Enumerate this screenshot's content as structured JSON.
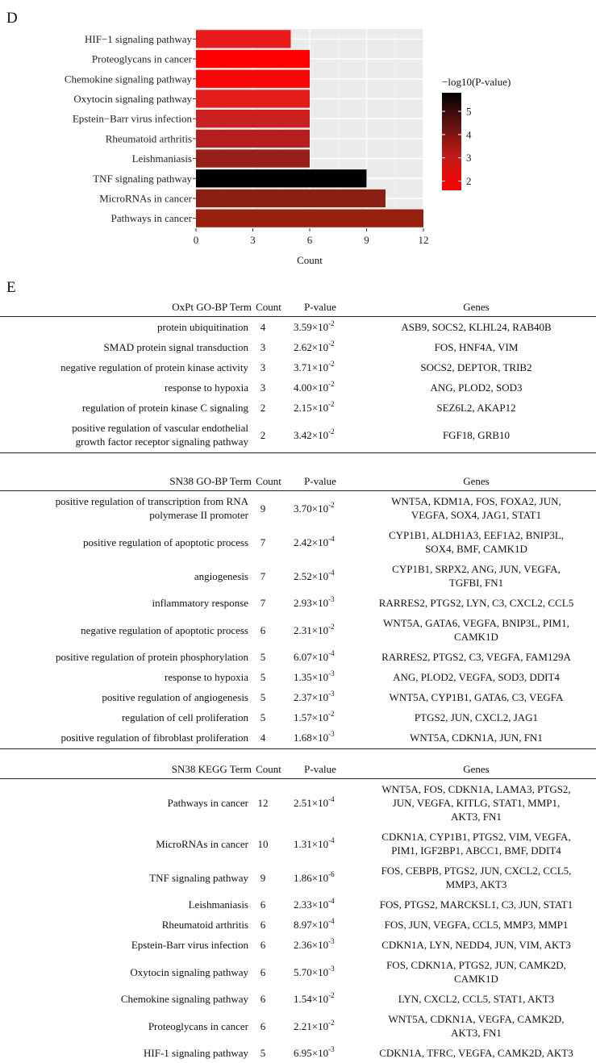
{
  "panel_d_label": "D",
  "panel_e_label": "E",
  "chart_data": {
    "type": "bar",
    "orientation": "horizontal",
    "categories": [
      "HIF−1 signaling pathway",
      "Proteoglycans in cancer",
      "Chemokine signaling pathway",
      "Oxytocin signaling pathway",
      "Epstein−Barr virus infection",
      "Rheumatoid arthritis",
      "Leishmaniasis",
      "TNF signaling pathway",
      "MicroRNAs in cancer",
      "Pathways in cancer"
    ],
    "values": [
      5,
      6,
      6,
      6,
      6,
      6,
      6,
      9,
      10,
      12
    ],
    "color_values": [
      2.16,
      1.65,
      1.81,
      2.24,
      2.63,
      3.05,
      3.63,
      5.73,
      3.88,
      3.6
    ],
    "colors": [
      "#e81a1a",
      "#ff0000",
      "#f90707",
      "#e31c1c",
      "#c92020",
      "#b51e1e",
      "#962018",
      "#000000",
      "#8a2014",
      "#98200f"
    ],
    "xlabel": "Count",
    "ylabel": "",
    "xlim": [
      0,
      12
    ],
    "xticks": [
      0,
      3,
      6,
      9,
      12
    ],
    "grid": true,
    "legend": {
      "title": "−log10(P-value)",
      "ticks": [
        2,
        3,
        4,
        5
      ],
      "range": [
        1.6,
        5.8
      ],
      "gradient": [
        "#ff0000",
        "#000000"
      ],
      "position": "right"
    }
  },
  "tables": [
    {
      "header": {
        "term": "OxPt GO-BP Term",
        "count": "Count",
        "pvalue": "P-value",
        "genes": "Genes"
      },
      "rows": [
        {
          "term": [
            "protein ubiquitination"
          ],
          "count": "4",
          "p_mant": "3.59×10",
          "p_exp": "-2",
          "genes": [
            "ASB9, SOCS2, KLHL24, RAB40B"
          ]
        },
        {
          "term": [
            "SMAD protein signal transduction"
          ],
          "count": "3",
          "p_mant": "2.62×10",
          "p_exp": "-2",
          "genes": [
            "FOS, HNF4A, VIM"
          ]
        },
        {
          "term": [
            "negative regulation of protein kinase activity"
          ],
          "count": "3",
          "p_mant": "3.71×10",
          "p_exp": "-2",
          "genes": [
            "SOCS2, DEPTOR, TRIB2"
          ]
        },
        {
          "term": [
            "response to hypoxia"
          ],
          "count": "3",
          "p_mant": "4.00×10",
          "p_exp": "-2",
          "genes": [
            "ANG, PLOD2, SOD3"
          ]
        },
        {
          "term": [
            "regulation of protein kinase C signaling"
          ],
          "count": "2",
          "p_mant": "2.15×10",
          "p_exp": "-2",
          "genes": [
            "SEZ6L2, AKAP12"
          ]
        },
        {
          "term": [
            "positive regulation of vascular endothelial",
            "growth factor receptor signaling pathway"
          ],
          "count": "2",
          "p_mant": "3.42×10",
          "p_exp": "-2",
          "genes": [
            "FGF18, GRB10"
          ]
        }
      ]
    },
    {
      "header": {
        "term": "SN38 GO-BP Term",
        "count": "Count",
        "pvalue": "P-value",
        "genes": "Genes"
      },
      "rows": [
        {
          "term": [
            "positive regulation of transcription from RNA",
            "polymerase II promoter"
          ],
          "count": "9",
          "p_mant": "3.70×10",
          "p_exp": "-2",
          "genes": [
            "WNT5A, KDM1A, FOS, FOXA2, JUN,",
            "VEGFA, SOX4,  JAG1, STAT1"
          ]
        },
        {
          "term": [
            "positive regulation of apoptotic process"
          ],
          "count": "7",
          "p_mant": "2.42×10",
          "p_exp": "-4",
          "genes": [
            "CYP1B1, ALDH1A3, EEF1A2, BNIP3L,",
            "SOX4, BMF, CAMK1D"
          ]
        },
        {
          "term": [
            "angiogenesis"
          ],
          "count": "7",
          "p_mant": "2.52×10",
          "p_exp": "-4",
          "genes": [
            "CYP1B1, SRPX2, ANG, JUN, VEGFA,",
            "TGFBI, FN1"
          ]
        },
        {
          "term": [
            "inflammatory response"
          ],
          "count": "7",
          "p_mant": "2.93×10",
          "p_exp": "-3",
          "genes": [
            "RARRES2, PTGS2, LYN, C3, CXCL2, CCL5"
          ]
        },
        {
          "term": [
            "negative regulation of apoptotic process"
          ],
          "count": "6",
          "p_mant": "2.31×10",
          "p_exp": "-2",
          "genes": [
            "WNT5A, GATA6, VEGFA, BNIP3L, PIM1,",
            "CAMK1D"
          ]
        },
        {
          "term": [
            "positive regulation of protein phosphorylation"
          ],
          "count": "5",
          "p_mant": "6.07×10",
          "p_exp": "-4",
          "genes": [
            "RARRES2, PTGS2, C3, VEGFA, FAM129A"
          ]
        },
        {
          "term": [
            "response to hypoxia"
          ],
          "count": "5",
          "p_mant": "1.35×10",
          "p_exp": "-3",
          "genes": [
            "ANG, PLOD2, VEGFA, SOD3, DDIT4"
          ]
        },
        {
          "term": [
            "positive regulation of angiogenesis"
          ],
          "count": "5",
          "p_mant": "2.37×10",
          "p_exp": "-3",
          "genes": [
            "WNT5A, CYP1B1, GATA6, C3, VEGFA"
          ]
        },
        {
          "term": [
            "regulation of cell proliferation"
          ],
          "count": "5",
          "p_mant": "1.57×10",
          "p_exp": "-2",
          "genes": [
            "PTGS2, JUN, CXCL2, JAG1"
          ]
        },
        {
          "term": [
            "positive regulation of fibroblast proliferation"
          ],
          "count": "4",
          "p_mant": "1.68×10",
          "p_exp": "-3",
          "genes": [
            "WNT5A, CDKN1A, JUN, FN1"
          ]
        }
      ]
    },
    {
      "header": {
        "term": "SN38 KEGG Term",
        "count": "Count",
        "pvalue": "P-value",
        "genes": "Genes"
      },
      "rows": [
        {
          "term": [
            "Pathways in cancer"
          ],
          "count": "12",
          "p_mant": "2.51×10",
          "p_exp": "-4",
          "genes": [
            "WNT5A, FOS, CDKN1A, LAMA3, PTGS2,",
            "JUN, VEGFA, KITLG, STAT1, MMP1,",
            "AKT3, FN1"
          ]
        },
        {
          "term": [
            "MicroRNAs in cancer"
          ],
          "count": "10",
          "p_mant": "1.31×10",
          "p_exp": "-4",
          "genes": [
            "CDKN1A, CYP1B1, PTGS2, VIM, VEGFA,",
            "PIM1, IGF2BP1, ABCC1, BMF, DDIT4"
          ]
        },
        {
          "term": [
            "TNF signaling pathway"
          ],
          "count": "9",
          "p_mant": "1.86×10",
          "p_exp": "-6",
          "genes": [
            "FOS, CEBPB, PTGS2, JUN, CXCL2, CCL5,",
            "MMP3, AKT3"
          ]
        },
        {
          "term": [
            "Leishmaniasis"
          ],
          "count": "6",
          "p_mant": "2.33×10",
          "p_exp": "-4",
          "genes": [
            "FOS, PTGS2, MARCKSL1, C3, JUN, STAT1"
          ]
        },
        {
          "term": [
            "Rheumatoid arthritis"
          ],
          "count": "6",
          "p_mant": "8.97×10",
          "p_exp": "-4",
          "genes": [
            "FOS, JUN, VEGFA, CCL5, MMP3, MMP1"
          ]
        },
        {
          "term": [
            "Epstein-Barr virus infection"
          ],
          "count": "6",
          "p_mant": "2.36×10",
          "p_exp": "-3",
          "genes": [
            "CDKN1A, LYN, NEDD4, JUN, VIM, AKT3"
          ]
        },
        {
          "term": [
            "Oxytocin signaling pathway"
          ],
          "count": "6",
          "p_mant": "5.70×10",
          "p_exp": "-3",
          "genes": [
            "FOS, CDKN1A, PTGS2, JUN, CAMK2D,",
            "CAMK1D"
          ]
        },
        {
          "term": [
            "Chemokine signaling pathway"
          ],
          "count": "6",
          "p_mant": "1.54×10",
          "p_exp": "-2",
          "genes": [
            "LYN, CXCL2, CCL5, STAT1, AKT3"
          ]
        },
        {
          "term": [
            "Proteoglycans in cancer"
          ],
          "count": "6",
          "p_mant": "2.21×10",
          "p_exp": "-2",
          "genes": [
            "WNT5A, CDKN1A, VEGFA, CAMK2D,",
            "AKT3, FN1"
          ]
        },
        {
          "term": [
            "HIF-1 signaling pathway"
          ],
          "count": "5",
          "p_mant": "6.95×10",
          "p_exp": "-3",
          "genes": [
            "CDKN1A, TFRC, VEGFA, CAMK2D, AKT3"
          ]
        }
      ]
    }
  ]
}
